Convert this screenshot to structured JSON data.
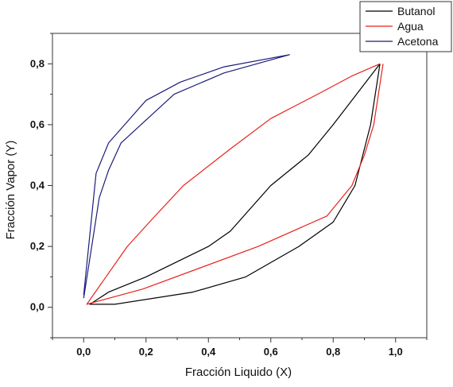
{
  "chart_data": {
    "type": "line",
    "title": "",
    "xlabel": "Fracción Liquido (X)",
    "ylabel": "Fracción Vapor (Y)",
    "xlim": [
      -0.1,
      1.1
    ],
    "ylim": [
      -0.1,
      0.9
    ],
    "x_ticks": [
      "0,0",
      "0,2",
      "0,4",
      "0,6",
      "0,8",
      "1,0"
    ],
    "y_ticks": [
      "0,0",
      "0,2",
      "0,4",
      "0,6",
      "0,8"
    ],
    "grid": false,
    "legend_position": "top-right",
    "series": [
      {
        "name": "Butanol",
        "color": "#000000",
        "points": [
          [
            0.95,
            0.8
          ],
          [
            0.92,
            0.6
          ],
          [
            0.87,
            0.4
          ],
          [
            0.8,
            0.28
          ],
          [
            0.69,
            0.2
          ],
          [
            0.52,
            0.1
          ],
          [
            0.35,
            0.05
          ],
          [
            0.1,
            0.01
          ],
          [
            0.02,
            0.01
          ],
          [
            0.08,
            0.05
          ],
          [
            0.2,
            0.1
          ],
          [
            0.4,
            0.2
          ],
          [
            0.47,
            0.25
          ],
          [
            0.6,
            0.4
          ],
          [
            0.72,
            0.5
          ],
          [
            0.8,
            0.6
          ],
          [
            0.95,
            0.8
          ]
        ]
      },
      {
        "name": "Agua",
        "color": "#e8221a",
        "points": [
          [
            0.95,
            0.8
          ],
          [
            0.86,
            0.76
          ],
          [
            0.75,
            0.7
          ],
          [
            0.6,
            0.62
          ],
          [
            0.47,
            0.52
          ],
          [
            0.32,
            0.4
          ],
          [
            0.22,
            0.29
          ],
          [
            0.14,
            0.2
          ],
          [
            0.01,
            0.01
          ],
          [
            0.19,
            0.06
          ],
          [
            0.56,
            0.2
          ],
          [
            0.78,
            0.3
          ],
          [
            0.86,
            0.4
          ],
          [
            0.9,
            0.5
          ],
          [
            0.93,
            0.6
          ],
          [
            0.96,
            0.8
          ]
        ]
      },
      {
        "name": "Acetona",
        "color": "#1c1c7a",
        "points": [
          [
            0.0,
            0.04
          ],
          [
            0.04,
            0.44
          ],
          [
            0.08,
            0.54
          ],
          [
            0.2,
            0.68
          ],
          [
            0.31,
            0.74
          ],
          [
            0.45,
            0.79
          ],
          [
            0.66,
            0.83
          ],
          [
            0.45,
            0.77
          ],
          [
            0.29,
            0.7
          ],
          [
            0.12,
            0.54
          ],
          [
            0.08,
            0.45
          ],
          [
            0.05,
            0.36
          ],
          [
            0.0,
            0.03
          ]
        ]
      }
    ]
  }
}
